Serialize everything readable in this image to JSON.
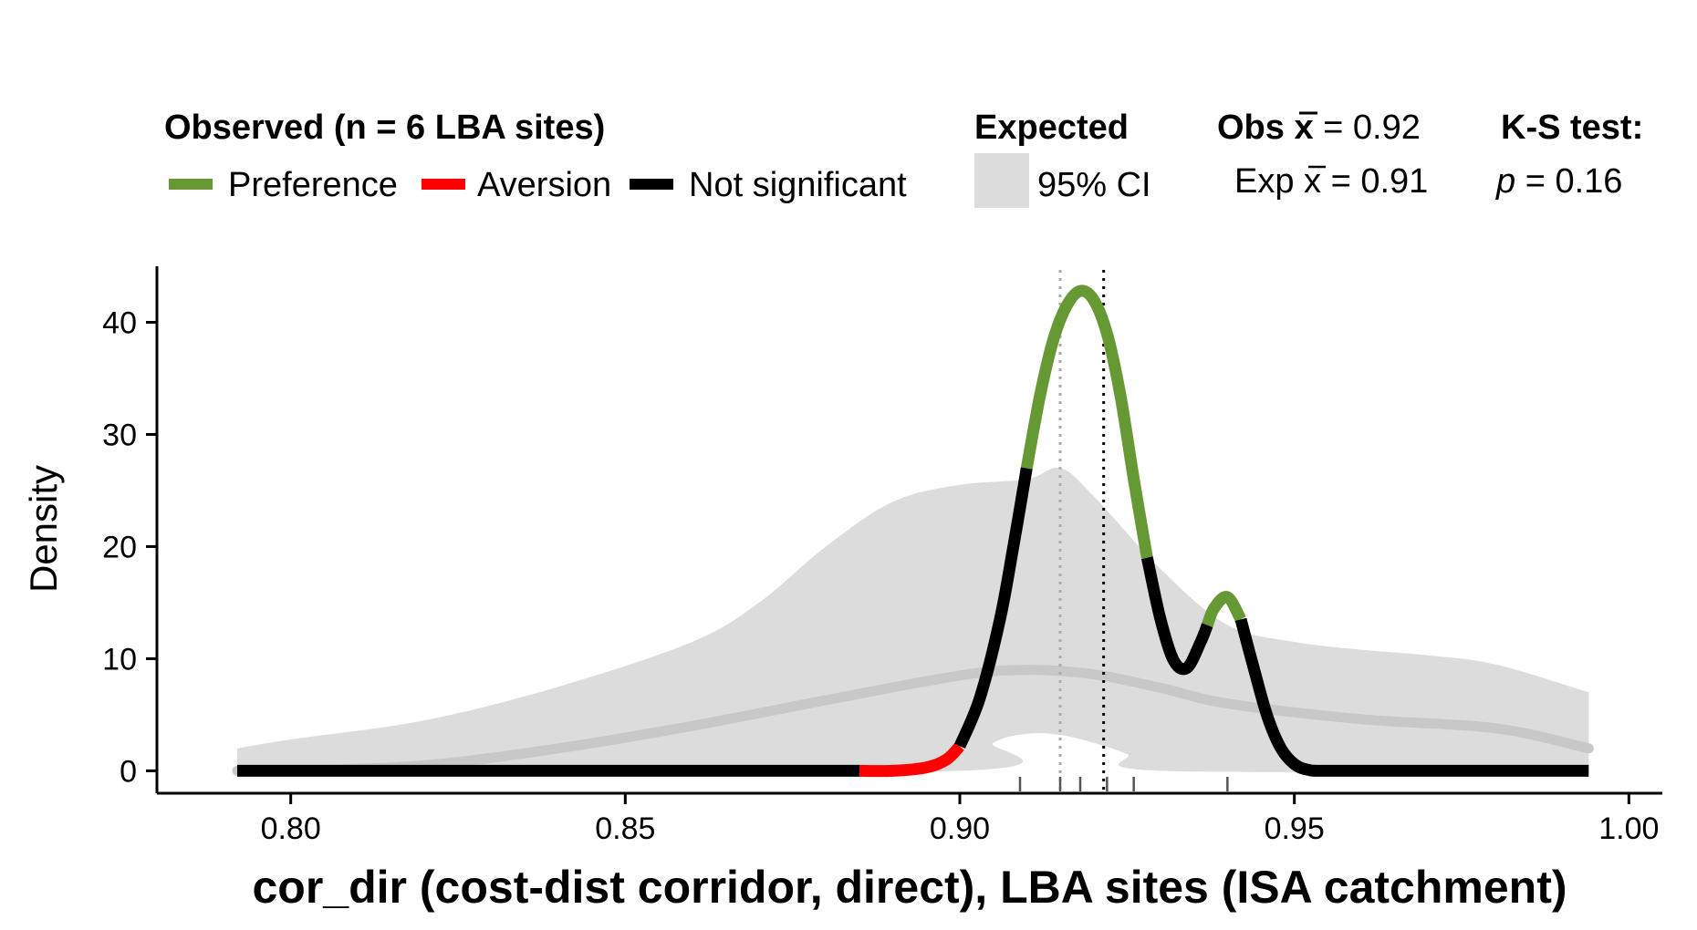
{
  "legend": {
    "observed_title": "Observed (n = 6 LBA sites)",
    "expected_title": "Expected",
    "preference_label": "Preference",
    "aversion_label": "Aversion",
    "not_significant_label": "Not significant",
    "ci_label": "95% CI",
    "obs_mean_prefix": "Obs ",
    "obs_mean_value": " = 0.92",
    "exp_mean_prefix": "Exp ",
    "exp_mean_value": " = 0.91",
    "mean_symbol": "x",
    "ks_title": "K-S test:",
    "ks_p_symbol": "p",
    "ks_p_value": " = 0.16"
  },
  "colors": {
    "preference": "#669933",
    "aversion": "#ff0000",
    "not_significant": "#000000",
    "ci_band": "#dcdcdc",
    "expected_mean_line": "#c8c8c8",
    "obs_mean_vline": "#000000",
    "exp_mean_vline": "#aaaaaa",
    "rug": "#555555"
  },
  "chart_data": {
    "type": "line",
    "xlabel": "cor_dir (cost-dist corridor, direct), LBA sites (ISA catchment)",
    "ylabel": "Density",
    "xlim": [
      0.78,
      1.005
    ],
    "ylim": [
      -2,
      45
    ],
    "x_ticks": [
      0.8,
      0.85,
      0.9,
      0.95,
      1.0
    ],
    "x_tick_labels": [
      "0.80",
      "0.85",
      "0.90",
      "0.95",
      "1.00"
    ],
    "y_ticks": [
      0,
      10,
      20,
      30,
      40
    ],
    "y_tick_labels": [
      "0",
      "10",
      "20",
      "30",
      "40"
    ],
    "grid": false,
    "legend_position": "top",
    "observed_mean": 0.9215,
    "expected_mean": 0.915,
    "rug": [
      0.909,
      0.915,
      0.918,
      0.922,
      0.926,
      0.94
    ],
    "observed_density": {
      "x": [
        0.792,
        0.8,
        0.85,
        0.885,
        0.89,
        0.895,
        0.898,
        0.9,
        0.903,
        0.906,
        0.908,
        0.91,
        0.912,
        0.914,
        0.916,
        0.918,
        0.92,
        0.922,
        0.924,
        0.926,
        0.928,
        0.93,
        0.932,
        0.934,
        0.936,
        0.938,
        0.94,
        0.942,
        0.944,
        0.946,
        0.948,
        0.95,
        0.952,
        0.955,
        0.97,
        0.994
      ],
      "y": [
        0,
        0,
        0,
        0,
        0,
        0.3,
        1.0,
        2.2,
        6.5,
        13.5,
        20.0,
        27.0,
        33.5,
        38.5,
        41.5,
        42.8,
        42.0,
        39.0,
        33.5,
        26.0,
        19.0,
        13.5,
        9.8,
        9.2,
        11.5,
        14.5,
        15.5,
        13.5,
        9.0,
        4.8,
        2.0,
        0.6,
        0.1,
        0,
        0,
        0
      ],
      "segments": [
        {
          "status": "Not significant",
          "from": 0.792,
          "to": 0.885
        },
        {
          "status": "Aversion",
          "from": 0.885,
          "to": 0.9
        },
        {
          "status": "Not significant",
          "from": 0.9,
          "to": 0.91
        },
        {
          "status": "Preference",
          "from": 0.91,
          "to": 0.928
        },
        {
          "status": "Not significant",
          "from": 0.928,
          "to": 0.937
        },
        {
          "status": "Preference",
          "from": 0.937,
          "to": 0.942
        },
        {
          "status": "Not significant",
          "from": 0.942,
          "to": 0.994
        }
      ]
    },
    "expected_mean_density": {
      "x": [
        0.792,
        0.8,
        0.82,
        0.84,
        0.86,
        0.88,
        0.9,
        0.91,
        0.92,
        0.93,
        0.94,
        0.96,
        0.98,
        0.994
      ],
      "y": [
        0,
        0,
        0.5,
        2.0,
        4.0,
        6.3,
        8.5,
        9.0,
        8.6,
        7.4,
        6.0,
        4.6,
        3.8,
        2.0
      ]
    },
    "expected_ci_upper": {
      "x": [
        0.792,
        0.8,
        0.82,
        0.84,
        0.86,
        0.87,
        0.88,
        0.89,
        0.9,
        0.91,
        0.915,
        0.92,
        0.93,
        0.94,
        0.95,
        0.96,
        0.97,
        0.98,
        0.994
      ],
      "y": [
        2.0,
        2.8,
        4.5,
        7.5,
        11.5,
        15.0,
        20.0,
        24.0,
        25.5,
        26.0,
        27.0,
        24.5,
        18.0,
        13.0,
        11.5,
        10.8,
        10.3,
        9.5,
        7.0
      ]
    },
    "expected_ci_lower": {
      "x": [
        0.792,
        0.9,
        0.905,
        0.91,
        0.915,
        0.92,
        0.925,
        0.93,
        0.994
      ],
      "y": [
        0,
        0,
        2.5,
        3.3,
        3.2,
        2.5,
        1.5,
        0,
        0
      ]
    }
  }
}
